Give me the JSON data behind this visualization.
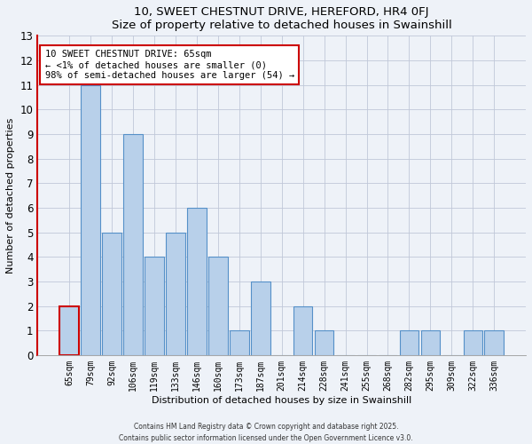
{
  "title": "10, SWEET CHESTNUT DRIVE, HEREFORD, HR4 0FJ",
  "subtitle": "Size of property relative to detached houses in Swainshill",
  "xlabel": "Distribution of detached houses by size in Swainshill",
  "ylabel": "Number of detached properties",
  "footer_line1": "Contains HM Land Registry data © Crown copyright and database right 2025.",
  "footer_line2": "Contains public sector information licensed under the Open Government Licence v3.0.",
  "categories": [
    "65sqm",
    "79sqm",
    "92sqm",
    "106sqm",
    "119sqm",
    "133sqm",
    "146sqm",
    "160sqm",
    "173sqm",
    "187sqm",
    "201sqm",
    "214sqm",
    "228sqm",
    "241sqm",
    "255sqm",
    "268sqm",
    "282sqm",
    "295sqm",
    "309sqm",
    "322sqm",
    "336sqm"
  ],
  "values": [
    2,
    11,
    5,
    9,
    4,
    5,
    6,
    4,
    1,
    3,
    0,
    2,
    1,
    0,
    0,
    0,
    1,
    1,
    0,
    1,
    1
  ],
  "highlight_index": 0,
  "bar_color_normal": "#b8d0ea",
  "bar_color_highlight": "#b8d0ea",
  "bar_edge_color": "#5590c8",
  "highlight_bar_edge_color": "#cc0000",
  "ylim": [
    0,
    13
  ],
  "annotation_title": "10 SWEET CHESTNUT DRIVE: 65sqm",
  "annotation_line1": "← <1% of detached houses are smaller (0)",
  "annotation_line2": "98% of semi-detached houses are larger (54) →",
  "annotation_box_edge_color": "#cc0000",
  "background_color": "#eef2f8",
  "plot_bg_color": "#eef2f8",
  "grid_color": "#c0c8d8",
  "left_spine_color": "#cc0000"
}
